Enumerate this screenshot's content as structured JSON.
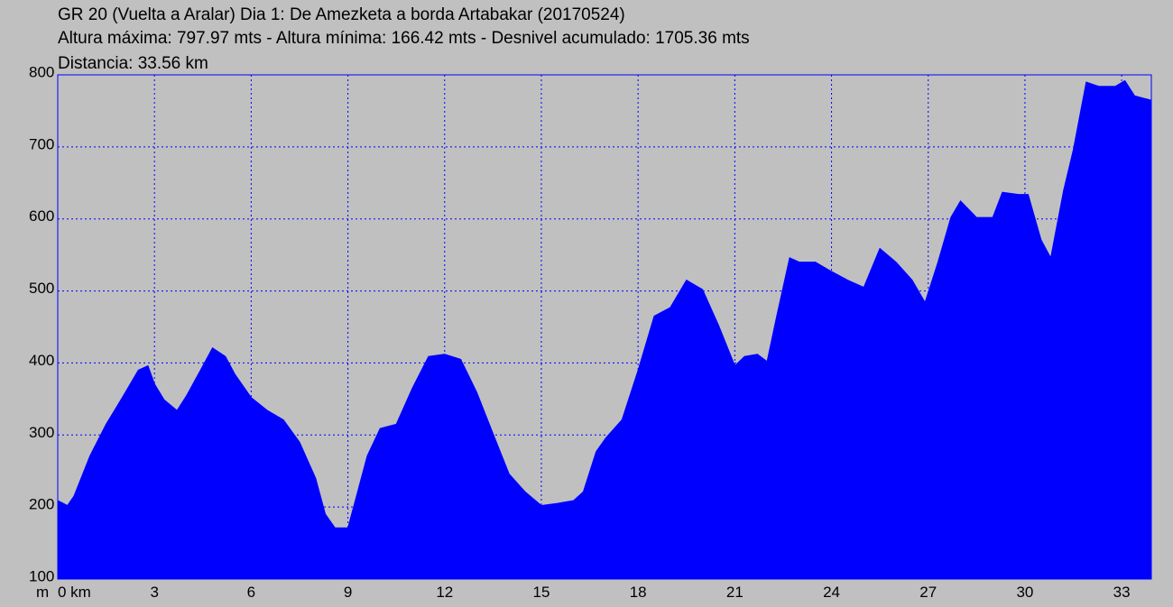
{
  "chart_data": {
    "type": "area",
    "title": "GR 20 (Vuelta a Aralar) Dia 1: De Amezketa a borda Artabakar (20170524)",
    "subtitle": "Altura máxima: 797.97 mts - Altura mínima: 166.42 mts - Desnivel acumulado: 1705.36 mts",
    "distance_label": "Distancia: 33.56 km",
    "y_unit_label": "m",
    "color": "#0000ff",
    "grid": true,
    "x": [
      0,
      0.3,
      0.5,
      1,
      1.5,
      2,
      2.5,
      2.8,
      3,
      3.3,
      3.7,
      4,
      4.5,
      4.8,
      5.2,
      5.5,
      6,
      6.5,
      7,
      7.5,
      8,
      8.3,
      8.6,
      9,
      9.3,
      9.6,
      10,
      10.5,
      11,
      11.5,
      12,
      12.5,
      13,
      13.5,
      14,
      14.5,
      15,
      15.5,
      16,
      16.3,
      16.7,
      17,
      17.5,
      18,
      18.5,
      19,
      19.5,
      20,
      20.5,
      21,
      21.3,
      21.7,
      22,
      22.3,
      22.7,
      23,
      23.5,
      24,
      24.5,
      25,
      25.5,
      26,
      26.5,
      26.9,
      27.3,
      27.7,
      28,
      28.5,
      29,
      29.3,
      29.8,
      30.1,
      30.5,
      30.8,
      31.2,
      31.5,
      31.9,
      32.3,
      32.8,
      33.1,
      33.4,
      33.9
    ],
    "values": [
      209,
      202,
      215,
      271,
      315,
      352,
      390,
      396,
      371,
      349,
      334,
      355,
      396,
      421,
      409,
      384,
      352,
      334,
      321,
      290,
      240,
      190,
      171,
      171,
      221,
      271,
      309,
      315,
      365,
      409,
      412,
      405,
      359,
      302,
      246,
      221,
      202,
      205,
      209,
      221,
      277,
      296,
      321,
      390,
      465,
      477,
      515,
      502,
      452,
      396,
      409,
      412,
      402,
      465,
      546,
      540,
      540,
      527,
      515,
      505,
      559,
      540,
      515,
      484,
      540,
      602,
      625,
      602,
      602,
      637,
      634,
      634,
      571,
      546,
      640,
      696,
      790,
      784,
      784,
      792,
      771,
      765
    ],
    "xlim": [
      0,
      33.92
    ],
    "ylim": [
      100,
      800
    ],
    "xticks": [
      {
        "value": 0,
        "label": "0 km"
      },
      3,
      6,
      9,
      12,
      15,
      18,
      21,
      24,
      27,
      30,
      33
    ],
    "yticks": [
      100,
      200,
      300,
      400,
      500,
      600,
      700,
      800
    ]
  }
}
